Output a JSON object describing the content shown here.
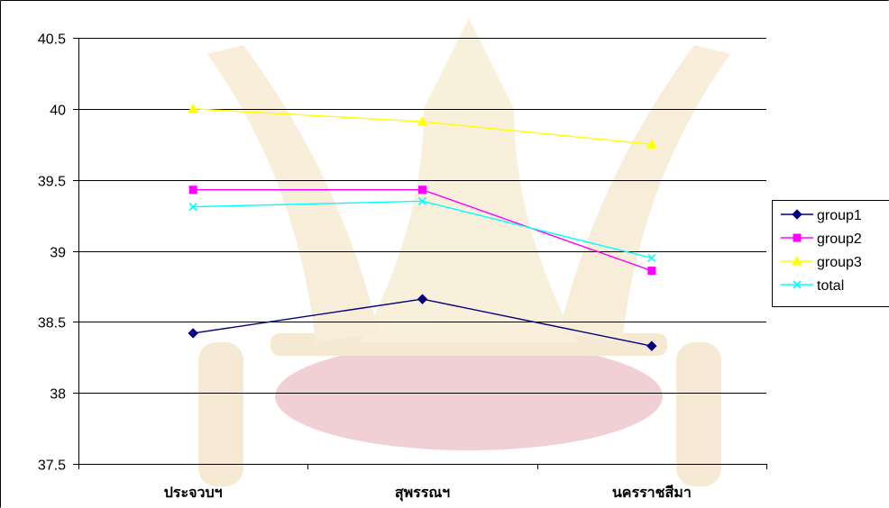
{
  "chart_data": {
    "type": "line",
    "categories": [
      "ประจวบฯ",
      "สุพรรณฯ",
      "นครราชสีมา"
    ],
    "series": [
      {
        "name": "group1",
        "values": [
          38.42,
          38.66,
          38.33
        ],
        "color": "#000080",
        "marker": "diamond"
      },
      {
        "name": "group2",
        "values": [
          39.43,
          39.43,
          38.86
        ],
        "color": "#FF00FF",
        "marker": "square"
      },
      {
        "name": "group3",
        "values": [
          40.0,
          39.91,
          39.75
        ],
        "color": "#FFFF00",
        "marker": "triangle"
      },
      {
        "name": "total",
        "values": [
          39.31,
          39.35,
          38.95
        ],
        "color": "#00FFFF",
        "marker": "x"
      }
    ],
    "ylim": [
      37.5,
      40.5
    ],
    "yticks": [
      "37.5",
      "38",
      "38.5",
      "39",
      "39.5",
      "40",
      "40.5"
    ],
    "grid": true,
    "legend": "right"
  }
}
